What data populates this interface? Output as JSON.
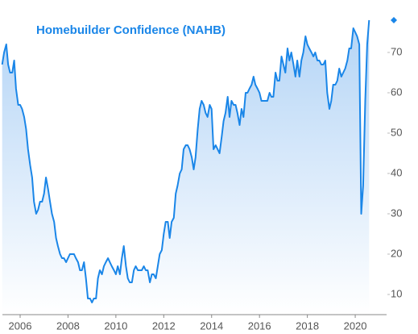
{
  "chart_data": {
    "type": "area-line",
    "title": "Homebuilder Confidence (NAHB)",
    "color": "#1a86e8",
    "x": [
      2005.25,
      2005.33,
      2005.42,
      2005.5,
      2005.58,
      2005.67,
      2005.75,
      2005.83,
      2005.92,
      2006,
      2006.08,
      2006.17,
      2006.25,
      2006.33,
      2006.42,
      2006.5,
      2006.58,
      2006.67,
      2006.75,
      2006.83,
      2006.92,
      2007,
      2007.08,
      2007.17,
      2007.25,
      2007.33,
      2007.42,
      2007.5,
      2007.58,
      2007.67,
      2007.75,
      2007.83,
      2007.92,
      2008,
      2008.08,
      2008.17,
      2008.25,
      2008.33,
      2008.42,
      2008.5,
      2008.58,
      2008.67,
      2008.75,
      2008.83,
      2008.92,
      2009,
      2009.08,
      2009.17,
      2009.25,
      2009.33,
      2009.42,
      2009.5,
      2009.58,
      2009.67,
      2009.75,
      2009.83,
      2009.92,
      2010,
      2010.08,
      2010.17,
      2010.25,
      2010.33,
      2010.42,
      2010.5,
      2010.58,
      2010.67,
      2010.75,
      2010.83,
      2010.92,
      2011,
      2011.08,
      2011.17,
      2011.25,
      2011.33,
      2011.42,
      2011.5,
      2011.58,
      2011.67,
      2011.75,
      2011.83,
      2011.92,
      2012,
      2012.08,
      2012.17,
      2012.25,
      2012.33,
      2012.42,
      2012.5,
      2012.58,
      2012.67,
      2012.75,
      2012.83,
      2012.92,
      2013,
      2013.08,
      2013.17,
      2013.25,
      2013.33,
      2013.42,
      2013.5,
      2013.58,
      2013.67,
      2013.75,
      2013.83,
      2013.92,
      2014,
      2014.08,
      2014.17,
      2014.25,
      2014.33,
      2014.42,
      2014.5,
      2014.58,
      2014.67,
      2014.75,
      2014.83,
      2014.92,
      2015,
      2015.08,
      2015.17,
      2015.25,
      2015.33,
      2015.42,
      2015.5,
      2015.58,
      2015.67,
      2015.75,
      2015.83,
      2015.92,
      2016,
      2016.08,
      2016.17,
      2016.25,
      2016.33,
      2016.42,
      2016.5,
      2016.58,
      2016.67,
      2016.75,
      2016.83,
      2016.92,
      2017,
      2017.08,
      2017.17,
      2017.25,
      2017.33,
      2017.42,
      2017.5,
      2017.58,
      2017.67,
      2017.75,
      2017.83,
      2017.92,
      2018,
      2018.08,
      2018.17,
      2018.25,
      2018.33,
      2018.42,
      2018.5,
      2018.58,
      2018.67,
      2018.75,
      2018.83,
      2018.92,
      2019,
      2019.08,
      2019.17,
      2019.25,
      2019.33,
      2019.42,
      2019.5,
      2019.58,
      2019.67,
      2019.75,
      2019.83,
      2019.92,
      2020,
      2020.08,
      2020.17,
      2020.25,
      2020.33,
      2020.42,
      2020.5,
      2020.58
    ],
    "values": [
      67,
      70,
      72,
      67,
      65,
      65,
      68,
      61,
      57,
      57,
      56,
      54,
      51,
      46,
      42,
      39,
      33,
      30,
      31,
      33,
      33,
      35,
      39,
      36,
      33,
      30,
      28,
      24,
      22,
      20,
      19,
      19,
      18,
      19,
      20,
      20,
      20,
      19,
      18,
      16,
      16,
      18,
      14,
      9,
      9,
      8,
      9,
      9,
      14,
      16,
      15,
      17,
      18,
      19,
      18,
      17,
      16,
      15,
      17,
      15,
      19,
      22,
      17,
      14,
      13,
      13,
      16,
      17,
      16,
      16,
      16,
      17,
      16,
      16,
      13,
      15,
      15,
      14,
      17,
      20,
      21,
      25,
      28,
      28,
      24,
      28,
      29,
      35,
      37,
      40,
      41,
      46,
      47,
      47,
      46,
      44,
      41,
      44,
      51,
      56,
      58,
      57,
      55,
      54,
      57,
      56,
      46,
      47,
      46,
      45,
      49,
      53,
      55,
      59,
      54,
      58,
      57,
      57,
      55,
      52,
      56,
      54,
      60,
      60,
      61,
      62,
      64,
      62,
      61,
      60,
      58,
      58,
      58,
      58,
      60,
      59,
      59,
      65,
      63,
      63,
      69,
      67,
      65,
      71,
      68,
      70,
      67,
      64,
      68,
      64,
      68,
      70,
      74,
      72,
      71,
      70,
      69,
      70,
      68,
      68,
      67,
      67,
      68,
      60,
      56,
      58,
      62,
      62,
      63,
      66,
      64,
      65,
      66,
      68,
      71,
      71,
      76,
      75,
      74,
      72,
      30,
      37,
      58,
      72,
      78
    ],
    "xlim": [
      2005.26,
      2021.31
    ],
    "xticks": [
      2006,
      2008,
      2010,
      2012,
      2014,
      2016,
      2018,
      2020
    ],
    "ylim": [
      5,
      82
    ],
    "yticks": [
      10,
      20,
      30,
      40,
      50,
      60,
      70
    ]
  }
}
